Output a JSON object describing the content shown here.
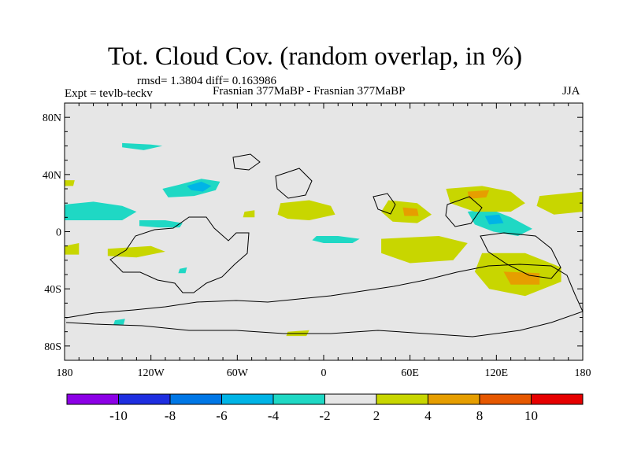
{
  "header": {
    "title": "Tot. Cloud Cov. (random overlap, in %)",
    "stats": "rmsd= 1.3804 diff= 0.163986",
    "experiment": "Expt = tevlb-teckv",
    "comparison": "Frasnian 377MaBP - Frasnian 377MaBP",
    "season": "JJA"
  },
  "map": {
    "lon_range": [
      -180,
      180
    ],
    "lat_range": [
      -90,
      90
    ],
    "background_color": "#e6e6e6",
    "lat_ticks": [
      {
        "lat": 80,
        "label": "80N"
      },
      {
        "lat": 40,
        "label": "40N"
      },
      {
        "lat": 0,
        "label": "0"
      },
      {
        "lat": -40,
        "label": "40S"
      },
      {
        "lat": -80,
        "label": "80S"
      }
    ],
    "lon_ticks": [
      {
        "lon": -180,
        "label": "180"
      },
      {
        "lon": -120,
        "label": "120W"
      },
      {
        "lon": -60,
        "label": "60W"
      },
      {
        "lon": 0,
        "label": "0"
      },
      {
        "lon": 60,
        "label": "60E"
      },
      {
        "lon": 120,
        "label": "120E"
      },
      {
        "lon": 180,
        "label": "180"
      }
    ],
    "anomaly_regions": [
      {
        "name": "cyan-n-atl",
        "bin": "-4..-2",
        "color": "#1fd8c4",
        "points": [
          [
            -140,
            62
          ],
          [
            -120,
            61
          ],
          [
            -112,
            60
          ],
          [
            -125,
            57
          ],
          [
            -140,
            59
          ]
        ]
      },
      {
        "name": "cyan-central-n",
        "bin": "-4..-2",
        "color": "#1fd8c4",
        "points": [
          [
            -112,
            30
          ],
          [
            -100,
            33
          ],
          [
            -85,
            37
          ],
          [
            -72,
            35
          ],
          [
            -75,
            29
          ],
          [
            -90,
            25
          ],
          [
            -108,
            24
          ]
        ]
      },
      {
        "name": "blue-core",
        "bin": "-6..-4",
        "color": "#00b4e6",
        "points": [
          [
            -95,
            32
          ],
          [
            -85,
            35
          ],
          [
            -78,
            32
          ],
          [
            -84,
            28
          ],
          [
            -92,
            29
          ]
        ]
      },
      {
        "name": "cyan-w-tropics",
        "bin": "-4..-2",
        "color": "#1fd8c4",
        "points": [
          [
            -180,
            19
          ],
          [
            -160,
            21
          ],
          [
            -140,
            18
          ],
          [
            -130,
            14
          ],
          [
            -140,
            8
          ],
          [
            -160,
            8
          ],
          [
            -180,
            8
          ]
        ]
      },
      {
        "name": "cyan-sw-tropics",
        "bin": "-4..-2",
        "color": "#1fd8c4",
        "points": [
          [
            -128,
            8
          ],
          [
            -110,
            8
          ],
          [
            -98,
            6
          ],
          [
            -100,
            3
          ],
          [
            -115,
            3
          ],
          [
            -128,
            4
          ]
        ]
      },
      {
        "name": "cyan-mid-eq",
        "bin": "-4..-2",
        "color": "#1fd8c4",
        "points": [
          [
            -5,
            -3
          ],
          [
            10,
            -3
          ],
          [
            25,
            -5
          ],
          [
            20,
            -8
          ],
          [
            0,
            -8
          ],
          [
            -8,
            -6
          ]
        ]
      },
      {
        "name": "cyan-east",
        "bin": "-4..-2",
        "color": "#1fd8c4",
        "points": [
          [
            100,
            14
          ],
          [
            115,
            16
          ],
          [
            130,
            10
          ],
          [
            145,
            2
          ],
          [
            135,
            -3
          ],
          [
            118,
            0
          ],
          [
            105,
            5
          ]
        ]
      },
      {
        "name": "blue-east",
        "bin": "-6..-4",
        "color": "#00b4e6",
        "points": [
          [
            112,
            11
          ],
          [
            122,
            12
          ],
          [
            125,
            6
          ],
          [
            115,
            5
          ]
        ]
      },
      {
        "name": "cyan-small-1",
        "bin": "-4..-2",
        "color": "#1fd8c4",
        "points": [
          [
            -100,
            -26
          ],
          [
            -95,
            -25
          ],
          [
            -96,
            -29
          ],
          [
            -101,
            -29
          ]
        ]
      },
      {
        "name": "cyan-small-2",
        "bin": "-4..-2",
        "color": "#1fd8c4",
        "points": [
          [
            -145,
            -62
          ],
          [
            -138,
            -61
          ],
          [
            -139,
            -65
          ],
          [
            -146,
            -65
          ]
        ]
      },
      {
        "name": "yellow-nw",
        "bin": "2..4",
        "color": "#c8d600",
        "points": [
          [
            -180,
            36
          ],
          [
            -173,
            36
          ],
          [
            -174,
            32
          ],
          [
            -180,
            32
          ]
        ]
      },
      {
        "name": "yellow-atl-1",
        "bin": "2..4",
        "color": "#c8d600",
        "points": [
          [
            -55,
            14
          ],
          [
            -48,
            15
          ],
          [
            -48,
            10
          ],
          [
            -56,
            10
          ]
        ]
      },
      {
        "name": "yellow-atl-2",
        "bin": "2..4",
        "color": "#c8d600",
        "points": [
          [
            -30,
            20
          ],
          [
            -10,
            22
          ],
          [
            5,
            18
          ],
          [
            8,
            12
          ],
          [
            -10,
            8
          ],
          [
            -25,
            9
          ],
          [
            -32,
            12
          ]
        ]
      },
      {
        "name": "yellow-mid",
        "bin": "2..4",
        "color": "#c8d600",
        "points": [
          [
            45,
            22
          ],
          [
            65,
            20
          ],
          [
            75,
            12
          ],
          [
            65,
            6
          ],
          [
            48,
            7
          ],
          [
            40,
            14
          ]
        ]
      },
      {
        "name": "yellow-east-1",
        "bin": "2..4",
        "color": "#c8d600",
        "points": [
          [
            85,
            30
          ],
          [
            110,
            32
          ],
          [
            130,
            28
          ],
          [
            140,
            20
          ],
          [
            130,
            14
          ],
          [
            105,
            14
          ],
          [
            88,
            20
          ]
        ]
      },
      {
        "name": "yellow-east-2",
        "bin": "2..4",
        "color": "#c8d600",
        "points": [
          [
            150,
            25
          ],
          [
            180,
            28
          ],
          [
            180,
            14
          ],
          [
            160,
            12
          ],
          [
            148,
            18
          ]
        ]
      },
      {
        "name": "yellow-eq",
        "bin": "2..4",
        "color": "#c8d600",
        "points": [
          [
            40,
            -5
          ],
          [
            80,
            -3
          ],
          [
            100,
            -8
          ],
          [
            90,
            -20
          ],
          [
            60,
            -22
          ],
          [
            40,
            -15
          ]
        ]
      },
      {
        "name": "yellow-south",
        "bin": "2..4",
        "color": "#c8d600",
        "points": [
          [
            110,
            -15
          ],
          [
            140,
            -15
          ],
          [
            165,
            -25
          ],
          [
            165,
            -35
          ],
          [
            140,
            -45
          ],
          [
            115,
            -40
          ],
          [
            105,
            -28
          ]
        ]
      },
      {
        "name": "yellow-sw",
        "bin": "2..4",
        "color": "#c8d600",
        "points": [
          [
            -180,
            -10
          ],
          [
            -170,
            -8
          ],
          [
            -170,
            -16
          ],
          [
            -180,
            -16
          ]
        ]
      },
      {
        "name": "yellow-sw-2",
        "bin": "2..4",
        "color": "#c8d600",
        "points": [
          [
            -150,
            -12
          ],
          [
            -120,
            -10
          ],
          [
            -110,
            -14
          ],
          [
            -130,
            -18
          ],
          [
            -150,
            -17
          ]
        ]
      },
      {
        "name": "yellow-s-ocean",
        "bin": "2..4",
        "color": "#c8d600",
        "points": [
          [
            -25,
            -70
          ],
          [
            -10,
            -69
          ],
          [
            -12,
            -73
          ],
          [
            -26,
            -73
          ]
        ]
      },
      {
        "name": "orange-mid",
        "bin": "4..8",
        "color": "#e69e00",
        "points": [
          [
            55,
            17
          ],
          [
            65,
            16
          ],
          [
            66,
            11
          ],
          [
            56,
            11
          ]
        ]
      },
      {
        "name": "orange-east",
        "bin": "4..8",
        "color": "#e69e00",
        "points": [
          [
            100,
            28
          ],
          [
            115,
            29
          ],
          [
            113,
            24
          ],
          [
            101,
            23
          ]
        ]
      },
      {
        "name": "orange-south",
        "bin": "4..8",
        "color": "#e69e00",
        "points": [
          [
            125,
            -28
          ],
          [
            150,
            -29
          ],
          [
            150,
            -37
          ],
          [
            130,
            -37
          ]
        ]
      }
    ]
  },
  "colorbar": {
    "colors": [
      "#8c00e6",
      "#1e2ee0",
      "#0077e6",
      "#00b4e6",
      "#1fd8c4",
      "#e6e6e6",
      "#c8d600",
      "#e69e00",
      "#e65800",
      "#e60000"
    ],
    "labels": [
      "-10",
      "-8",
      "-6",
      "-4",
      "-2",
      "2",
      "4",
      "8",
      "10"
    ]
  }
}
